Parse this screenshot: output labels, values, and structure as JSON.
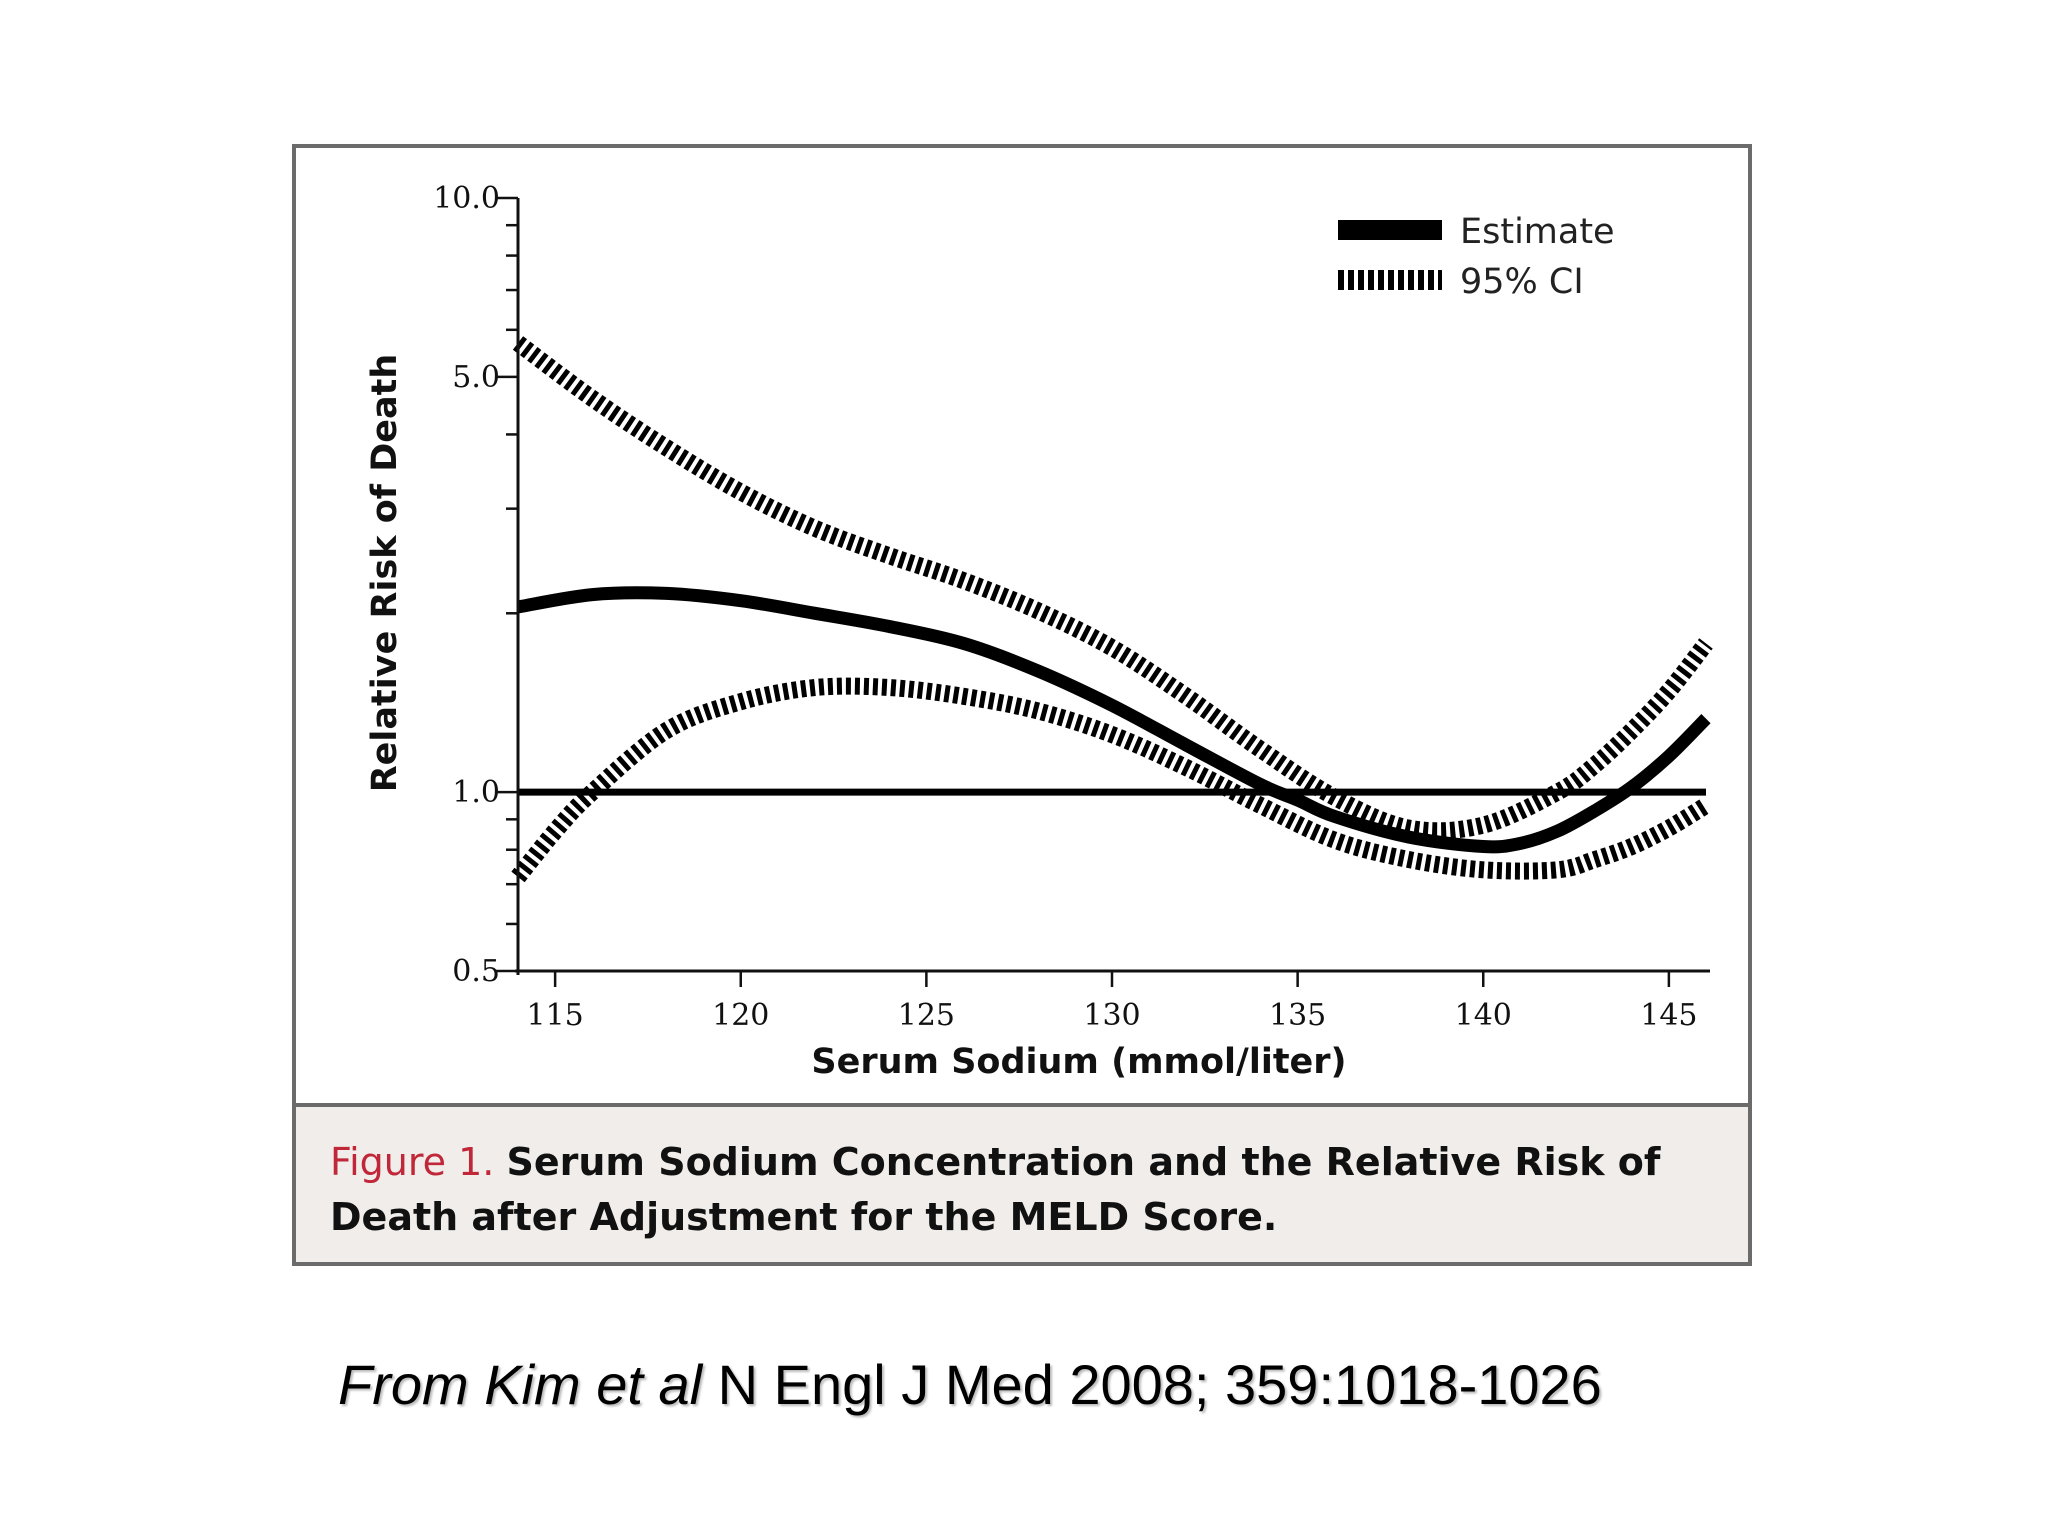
{
  "figure": {
    "caption_label": "Figure 1.",
    "caption_text": "Serum Sodium Concentration and the Relative Risk of Death after Adjustment for the MELD Score.",
    "frame_color": "#6b6b6b",
    "caption_background": "#f1edea",
    "caption_label_color": "#c0283a"
  },
  "source": {
    "italic_part": "From Kim et al",
    "plain_part": " N Engl J Med 2008; 359:1018-1026"
  },
  "chart_data": {
    "type": "line",
    "xlabel": "Serum Sodium (mmol/liter)",
    "ylabel": "Relative Risk of Death",
    "xlim": [
      114,
      146
    ],
    "ylim": [
      0.5,
      10.0
    ],
    "y_scale": "log",
    "x_ticks": [
      115,
      120,
      125,
      130,
      135,
      140,
      145
    ],
    "y_tick_labels": [
      {
        "value": 0.5,
        "label": "0.5"
      },
      {
        "value": 1.0,
        "label": "1.0"
      },
      {
        "value": 5.0,
        "label": "5.0"
      },
      {
        "value": 10.0,
        "label": "10.0"
      }
    ],
    "y_minor_ticks": [
      0.6,
      0.7,
      0.8,
      0.9,
      2,
      3,
      4,
      6,
      7,
      8,
      9
    ],
    "reference_line": 1.0,
    "legend": {
      "placement": "top-right",
      "entries": [
        {
          "label": "Estimate",
          "style": "solid"
        },
        {
          "label": "95% CI",
          "style": "dashed"
        }
      ]
    },
    "series": [
      {
        "style": "solid",
        "x": [
          114,
          116,
          118,
          120,
          122,
          124,
          126,
          128,
          130,
          132,
          134,
          135,
          136,
          138,
          140,
          141,
          142,
          143,
          144,
          145,
          146
        ],
        "y": [
          2.05,
          2.15,
          2.16,
          2.1,
          2.0,
          1.9,
          1.78,
          1.6,
          1.4,
          1.2,
          1.03,
          0.97,
          0.91,
          0.84,
          0.81,
          0.82,
          0.86,
          0.93,
          1.02,
          1.15,
          1.33
        ]
      },
      {
        "style": "dashed",
        "x": [
          114,
          116,
          118,
          120,
          122,
          124,
          126,
          128,
          130,
          132,
          134,
          136,
          138,
          140,
          142,
          143,
          144,
          145,
          146
        ],
        "y": [
          5.7,
          4.6,
          3.8,
          3.2,
          2.78,
          2.5,
          2.27,
          2.02,
          1.75,
          1.45,
          1.18,
          0.98,
          0.87,
          0.88,
          1.0,
          1.11,
          1.27,
          1.48,
          1.78
        ]
      },
      {
        "style": "dashed",
        "x": [
          114,
          115,
          116,
          118,
          120,
          122,
          124,
          126,
          128,
          130,
          132,
          134,
          136,
          138,
          140,
          142,
          143,
          144,
          145,
          146
        ],
        "y": [
          0.72,
          0.86,
          1.0,
          1.27,
          1.42,
          1.5,
          1.5,
          1.45,
          1.37,
          1.25,
          1.1,
          0.95,
          0.83,
          0.77,
          0.74,
          0.74,
          0.77,
          0.81,
          0.87,
          0.95
        ]
      }
    ]
  }
}
